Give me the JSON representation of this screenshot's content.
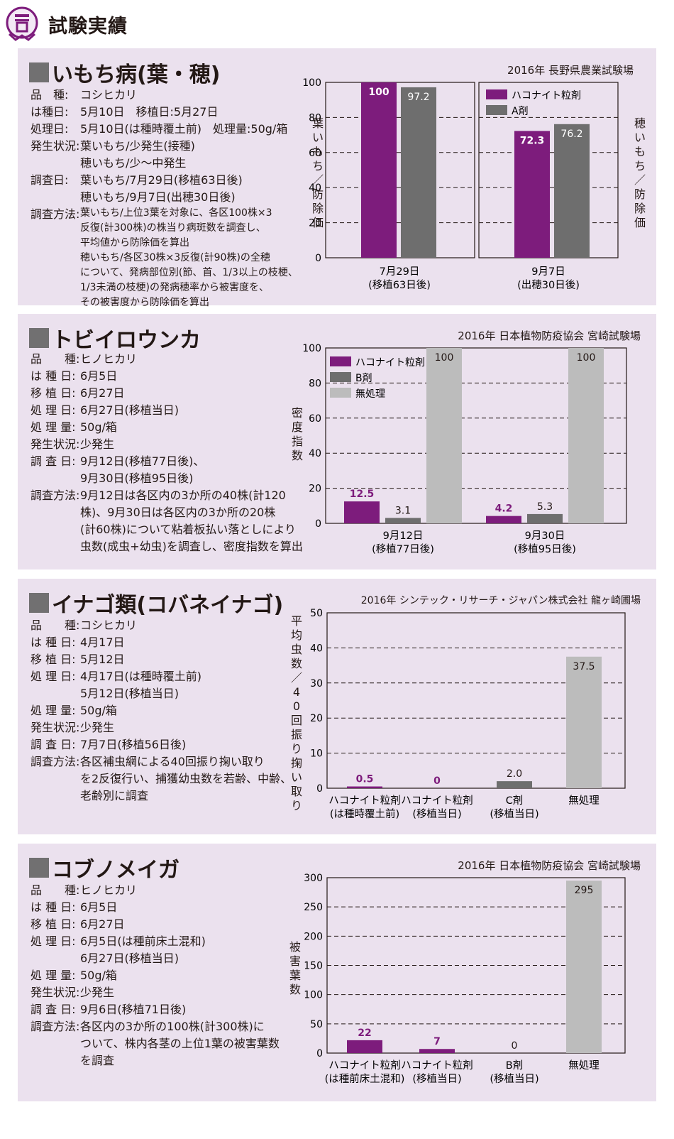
{
  "page_title": "試験実績",
  "colors": {
    "purple": "#7d1c7c",
    "darkgray": "#6e6e6e",
    "lightgray": "#bcbcbc",
    "panel": "#ebe1ee"
  },
  "sections": [
    {
      "title": "いもち病(葉・穂)",
      "source": "2016年 長野県農業試験場",
      "info": [
        {
          "label": "品　種:",
          "lines": [
            "コシヒカリ"
          ]
        },
        {
          "label": "は種日:",
          "lines": [
            "5月10日　移植日:5月27日"
          ]
        },
        {
          "label": "処理日:",
          "lines": [
            "5月10日(は種時覆土前)　処理量:50g/箱"
          ]
        },
        {
          "label": "発生状況:",
          "lines": [
            "葉いもち/少発生(接種)",
            "穂いもち/少～中発生"
          ]
        },
        {
          "label": "調査日:",
          "lines": [
            "葉いもち/7月29日(移植63日後)",
            "穂いもち/9月7日(出穂30日後)"
          ]
        },
        {
          "label": "調査方法:",
          "small": true,
          "lines": [
            "葉いもち/上位3葉を対象に、各区100株×3",
            "反復(計300株)の株当り病斑数を調査し、",
            "平均値から防除価を算出",
            "穂いもち/各区30株×3反復(計90株)の全穂",
            "について、発病部位別(節、首、1/3以上の枝梗、",
            "1/3未満の枝梗)の発病穂率から被害度を、",
            "その被害度から防除価を算出"
          ]
        }
      ]
    },
    {
      "title": "トビイロウンカ",
      "source": "2016年 日本植物防疫協会 宮崎試験場",
      "info": [
        {
          "label": "品　　種:",
          "lines": [
            "ヒノヒカリ"
          ]
        },
        {
          "label": "は 種 日:",
          "lines": [
            "6月5日"
          ]
        },
        {
          "label": "移 植 日:",
          "lines": [
            "6月27日"
          ]
        },
        {
          "label": "処 理 日:",
          "lines": [
            "6月27日(移植当日)"
          ]
        },
        {
          "label": "処 理 量:",
          "lines": [
            "50g/箱"
          ]
        },
        {
          "label": "発生状況:",
          "lines": [
            "少発生"
          ]
        },
        {
          "label": "調 査 日:",
          "lines": [
            "9月12日(移植77日後)、",
            "9月30日(移植95日後)"
          ]
        },
        {
          "label": "調査方法:",
          "lines": [
            "9月12日は各区内の3か所の40株(計120",
            "株)、9月30日は各区内の3か所の20株",
            "(計60株)について粘着板払い落としにより",
            "虫数(成虫+幼虫)を調査し、密度指数を算出"
          ]
        }
      ]
    },
    {
      "title": "イナゴ類(コバネイナゴ)",
      "source": "2016年 シンテック・リサーチ・ジャパン株式会社 龍ヶ崎圃場",
      "info": [
        {
          "label": "品　　種:",
          "lines": [
            "コシヒカリ"
          ]
        },
        {
          "label": "は 種 日:",
          "lines": [
            "4月17日"
          ]
        },
        {
          "label": "移 植 日:",
          "lines": [
            "5月12日"
          ]
        },
        {
          "label": "処 理 日:",
          "lines": [
            "4月17日(は種時覆土前)",
            "5月12日(移植当日)"
          ]
        },
        {
          "label": "処 理 量:",
          "lines": [
            "50g/箱"
          ]
        },
        {
          "label": "発生状況:",
          "lines": [
            "少発生"
          ]
        },
        {
          "label": "調 査 日:",
          "lines": [
            "7月7日(移植56日後)"
          ]
        },
        {
          "label": "調査方法:",
          "lines": [
            "各区補虫網による40回振り掬い取り",
            "を2反復行い、捕獲幼虫数を若齢、中齢、",
            "老齢別に調査"
          ]
        }
      ]
    },
    {
      "title": "コブノメイガ",
      "source": "2016年 日本植物防疫協会 宮崎試験場",
      "info": [
        {
          "label": "品　　種:",
          "lines": [
            "ヒノヒカリ"
          ]
        },
        {
          "label": "は 種 日:",
          "lines": [
            "6月5日"
          ]
        },
        {
          "label": "移 植 日:",
          "lines": [
            "6月27日"
          ]
        },
        {
          "label": "処 理 日:",
          "lines": [
            "6月5日(は種前床土混和)",
            "6月27日(移植当日)"
          ]
        },
        {
          "label": "処 理 量:",
          "lines": [
            "50g/箱"
          ]
        },
        {
          "label": "発生状況:",
          "lines": [
            "少発生"
          ]
        },
        {
          "label": "調 査 日:",
          "lines": [
            "9月6日(移植71日後)"
          ]
        },
        {
          "label": "調査方法:",
          "lines": [
            "各区内の3か所の100株(計300株)に",
            "ついて、株内各茎の上位1葉の被害葉数",
            "を調査"
          ]
        }
      ]
    }
  ],
  "chart_data": [
    {
      "type": "bar",
      "ylabel_left": "葉いもち／防除価",
      "ylabel_right": "穂いもち／防除価",
      "ylim": [
        0,
        100
      ],
      "yticks": [
        0,
        20,
        40,
        60,
        80,
        100
      ],
      "grid": true,
      "panels": [
        {
          "categories": [
            "7月29日",
            "(移植63日後)"
          ],
          "series": [
            {
              "name": "ハコナイト粒剤",
              "value": 100,
              "label": "100"
            },
            {
              "name": "A剤",
              "value": 97.2,
              "label": "97.2"
            }
          ]
        },
        {
          "categories": [
            "9月7日",
            "(出穂30日後)"
          ],
          "series": [
            {
              "name": "ハコナイト粒剤",
              "value": 72.3,
              "label": "72.3"
            },
            {
              "name": "A剤",
              "value": 76.2,
              "label": "76.2"
            }
          ]
        }
      ],
      "legend": [
        "ハコナイト粒剤",
        "A剤"
      ]
    },
    {
      "type": "bar",
      "ylabel": "密度指数",
      "ylim": [
        0,
        100
      ],
      "yticks": [
        0,
        20,
        40,
        60,
        80,
        100
      ],
      "grid": true,
      "categories": [
        [
          "9月12日",
          "(移植77日後)"
        ],
        [
          "9月30日",
          "(移植95日後)"
        ]
      ],
      "series": [
        {
          "name": "ハコナイト粒剤",
          "values": [
            12.5,
            4.2
          ],
          "labels": [
            "12.5",
            "4.2"
          ]
        },
        {
          "name": "B剤",
          "values": [
            3.1,
            5.3
          ],
          "labels": [
            "3.1",
            "5.3"
          ]
        },
        {
          "name": "無処理",
          "values": [
            100,
            100
          ],
          "labels": [
            "100",
            "100"
          ]
        }
      ]
    },
    {
      "type": "bar",
      "ylabel": "平均虫数／40回振り掬い取り",
      "ylim": [
        0,
        50
      ],
      "yticks": [
        0,
        10,
        20,
        30,
        40,
        50
      ],
      "grid": true,
      "categories": [
        [
          "ハコナイト粒剤",
          "(は種時覆土前)"
        ],
        [
          "ハコナイト粒剤",
          "(移植当日)"
        ],
        [
          "C剤",
          "(移植当日)"
        ],
        [
          "無処理",
          ""
        ]
      ],
      "values": [
        0.5,
        0,
        2.0,
        37.5
      ],
      "labels": [
        "0.5",
        "0",
        "2.0",
        "37.5"
      ]
    },
    {
      "type": "bar",
      "ylabel": "被害葉数",
      "ylim": [
        0,
        300
      ],
      "yticks": [
        0,
        50,
        100,
        150,
        200,
        250,
        300
      ],
      "grid": true,
      "categories": [
        [
          "ハコナイト粒剤",
          "(は種前床土混和)"
        ],
        [
          "ハコナイト粒剤",
          "(移植当日)"
        ],
        [
          "B剤",
          "(移植当日)"
        ],
        [
          "無処理",
          ""
        ]
      ],
      "values": [
        22,
        7,
        0,
        295
      ],
      "labels": [
        "22",
        "7",
        "0",
        "295"
      ]
    }
  ]
}
